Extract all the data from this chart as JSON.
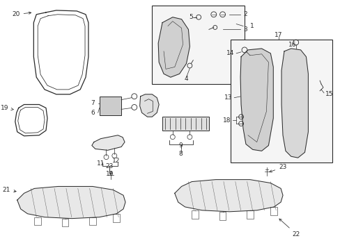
{
  "background_color": "#ffffff",
  "line_color": "#2a2a2a",
  "fig_width": 4.89,
  "fig_height": 3.6,
  "dpi": 100,
  "fs": 6.5,
  "lw": 0.7
}
